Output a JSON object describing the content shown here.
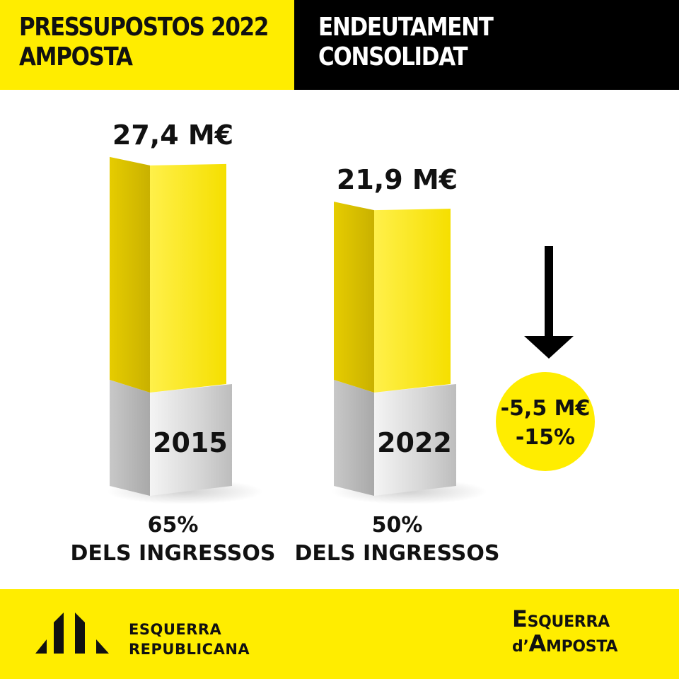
{
  "header": {
    "left_title": [
      "PRESSUPOSTOS 2022",
      "AMPOSTA"
    ],
    "right_title": [
      "ENDEUTAMENT",
      "CONSOLIDAT"
    ]
  },
  "chart_data": {
    "type": "bar",
    "title": "",
    "categories": [
      "2015",
      "2022"
    ],
    "values": [
      27.4,
      21.9
    ],
    "value_labels": [
      "27,4 M€",
      "21,9 M€"
    ],
    "unit": "M€",
    "sublabels": [
      [
        "65%",
        "DELS INGRESSOS"
      ],
      [
        "50%",
        "DELS INGRESSOS"
      ]
    ],
    "annotation": {
      "arrow": "down",
      "lines": [
        "-5,5 M€",
        "-15%"
      ]
    },
    "colors": {
      "bar": "#ffed00",
      "base": "#d9d9d9",
      "circle": "#ffed00",
      "arrow": "#000000"
    }
  },
  "footer": {
    "left_logo": [
      "ESQUERRA",
      "REPUBLICANA"
    ],
    "right_logo": {
      "line1_initial": "E",
      "line1_rest": "SQUERRA",
      "line2_prefix": "d’",
      "line2_initial": "A",
      "line2_rest": "MPOSTA"
    }
  }
}
